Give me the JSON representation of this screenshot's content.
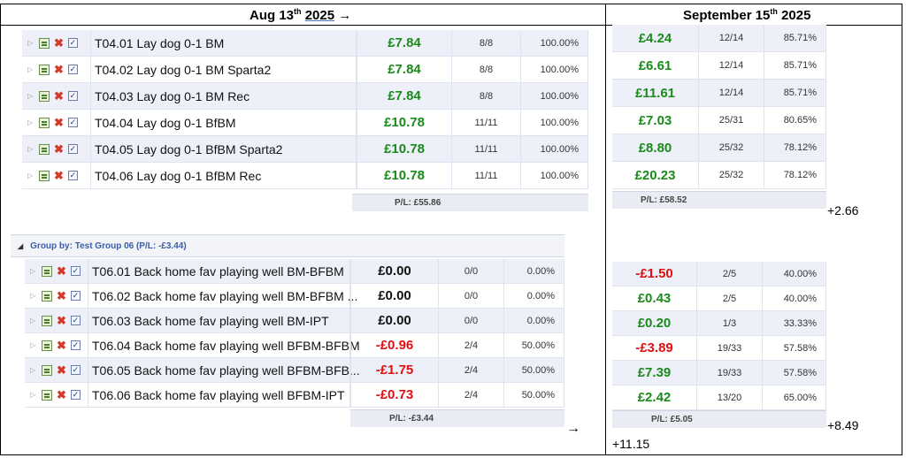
{
  "header": {
    "left_prefix": "Aug 13",
    "left_sup": "th",
    "left_year": "2025",
    "left_arrow": "→",
    "right_prefix": "September 15",
    "right_sup": "th",
    "right_year": "2025"
  },
  "group4": {
    "left_rows": [
      {
        "name": "T04.01 Lay dog 0-1 BM",
        "pl": "£7.84",
        "ratio": "8/8",
        "pct": "100.00%",
        "sign": "pos"
      },
      {
        "name": "T04.02 Lay dog 0-1 BM Sparta2",
        "pl": "£7.84",
        "ratio": "8/8",
        "pct": "100.00%",
        "sign": "pos"
      },
      {
        "name": "T04.03 Lay dog 0-1 BM Rec",
        "pl": "£7.84",
        "ratio": "8/8",
        "pct": "100.00%",
        "sign": "pos"
      },
      {
        "name": "T04.04 Lay dog 0-1 BfBM",
        "pl": "£10.78",
        "ratio": "11/11",
        "pct": "100.00%",
        "sign": "pos"
      },
      {
        "name": "T04.05 Lay dog 0-1 BfBM Sparta2",
        "pl": "£10.78",
        "ratio": "11/11",
        "pct": "100.00%",
        "sign": "pos"
      },
      {
        "name": "T04.06 Lay dog 0-1 BfBM Rec",
        "pl": "£10.78",
        "ratio": "11/11",
        "pct": "100.00%",
        "sign": "pos"
      }
    ],
    "left_total": "P/L: £55.86",
    "right_rows": [
      {
        "pl": "£4.24",
        "ratio": "12/14",
        "pct": "85.71%",
        "sign": "pos"
      },
      {
        "pl": "£6.61",
        "ratio": "12/14",
        "pct": "85.71%",
        "sign": "pos"
      },
      {
        "pl": "£11.61",
        "ratio": "12/14",
        "pct": "85.71%",
        "sign": "pos"
      },
      {
        "pl": "£7.03",
        "ratio": "25/31",
        "pct": "80.65%",
        "sign": "pos"
      },
      {
        "pl": "£8.80",
        "ratio": "25/32",
        "pct": "78.12%",
        "sign": "pos"
      },
      {
        "pl": "£20.23",
        "ratio": "25/32",
        "pct": "78.12%",
        "sign": "pos"
      }
    ],
    "right_total": "P/L: £58.52",
    "diff": "+2.66"
  },
  "group6": {
    "group_label": "Group by: Test Group 06 (P/L: -£3.44)",
    "left_rows": [
      {
        "name": "T06.01 Back home fav playing well BM-BFBM",
        "pl": "£0.00",
        "ratio": "0/0",
        "pct": "0.00%",
        "sign": "zero"
      },
      {
        "name": "T06.02 Back home fav playing well BM-BFBM ...",
        "pl": "£0.00",
        "ratio": "0/0",
        "pct": "0.00%",
        "sign": "zero"
      },
      {
        "name": "T06.03 Back home fav playing well BM-IPT",
        "pl": "£0.00",
        "ratio": "0/0",
        "pct": "0.00%",
        "sign": "zero"
      },
      {
        "name": "T06.04 Back home fav playing well BFBM-BFBM",
        "pl": "-£0.96",
        "ratio": "2/4",
        "pct": "50.00%",
        "sign": "neg"
      },
      {
        "name": "T06.05 Back home fav playing well BFBM-BFB...",
        "pl": "-£1.75",
        "ratio": "2/4",
        "pct": "50.00%",
        "sign": "neg"
      },
      {
        "name": "T06.06 Back home fav playing well BFBM-IPT",
        "pl": "-£0.73",
        "ratio": "2/4",
        "pct": "50.00%",
        "sign": "neg"
      }
    ],
    "left_total": "P/L: -£3.44",
    "right_rows": [
      {
        "pl": "-£1.50",
        "ratio": "2/5",
        "pct": "40.00%",
        "sign": "neg"
      },
      {
        "pl": "£0.43",
        "ratio": "2/5",
        "pct": "40.00%",
        "sign": "pos"
      },
      {
        "pl": "£0.20",
        "ratio": "1/3",
        "pct": "33.33%",
        "sign": "pos"
      },
      {
        "pl": "-£3.89",
        "ratio": "19/33",
        "pct": "57.58%",
        "sign": "neg"
      },
      {
        "pl": "£7.39",
        "ratio": "19/33",
        "pct": "57.58%",
        "sign": "pos"
      },
      {
        "pl": "£2.42",
        "ratio": "13/20",
        "pct": "65.00%",
        "sign": "pos"
      }
    ],
    "right_total": "P/L: £5.05",
    "diff": "+8.49"
  },
  "bottom_arrow": "→",
  "grand_total": "+11.15"
}
